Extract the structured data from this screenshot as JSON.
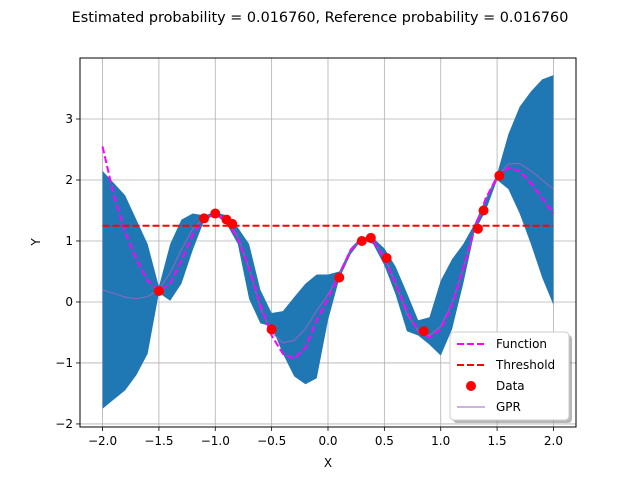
{
  "chart_data": {
    "type": "line",
    "title": "Estimated probability = 0.016760, Reference probability =  0.016760",
    "xlabel": "X",
    "ylabel": "Y",
    "xlim": [
      -2.2,
      2.2
    ],
    "ylim": [
      -2.05,
      4.0
    ],
    "xticks": [
      -2.0,
      -1.5,
      -1.0,
      -0.5,
      0.0,
      0.5,
      1.0,
      1.5,
      2.0
    ],
    "xtick_labels": [
      "−2.0",
      "−1.5",
      "−1.0",
      "−0.5",
      "0.0",
      "0.5",
      "1.0",
      "1.5",
      "2.0"
    ],
    "yticks": [
      -2,
      -1,
      0,
      1,
      2,
      3
    ],
    "ytick_labels": [
      "−2",
      "−1",
      "0",
      "1",
      "2",
      "3"
    ],
    "grid": true,
    "legend_position": "bottom-right",
    "colors": {
      "function": "#ff00ff",
      "threshold": "#ff0000",
      "data": "#ff0000",
      "gpr": "#9467bd",
      "band": "#1f77b4"
    },
    "function": {
      "name": "Function",
      "x": [
        -2.0,
        -1.9,
        -1.8,
        -1.7,
        -1.6,
        -1.5,
        -1.4,
        -1.3,
        -1.2,
        -1.1,
        -1.0,
        -0.9,
        -0.8,
        -0.7,
        -0.6,
        -0.5,
        -0.4,
        -0.3,
        -0.2,
        -0.1,
        0.0,
        0.1,
        0.2,
        0.3,
        0.4,
        0.5,
        0.6,
        0.7,
        0.8,
        0.9,
        1.0,
        1.1,
        1.2,
        1.3,
        1.4,
        1.5,
        1.6,
        1.7,
        1.8,
        1.9,
        2.0
      ],
      "y": [
        2.55,
        1.75,
        1.15,
        0.7,
        0.35,
        0.18,
        0.3,
        0.68,
        1.1,
        1.37,
        1.45,
        1.33,
        1.05,
        0.55,
        -0.05,
        -0.55,
        -0.85,
        -0.93,
        -0.75,
        -0.3,
        0.05,
        0.45,
        0.85,
        1.05,
        1.0,
        0.72,
        0.3,
        -0.15,
        -0.48,
        -0.58,
        -0.45,
        -0.05,
        0.55,
        1.2,
        1.7,
        2.05,
        2.2,
        2.15,
        1.95,
        1.7,
        1.45
      ]
    },
    "threshold": {
      "name": "Threshold",
      "y": 1.25
    },
    "data_points": {
      "name": "Data",
      "x": [
        -1.5,
        -1.1,
        -1.0,
        -0.9,
        -0.85,
        -0.5,
        0.1,
        0.3,
        0.38,
        0.52,
        0.85,
        1.33,
        1.38,
        1.52
      ],
      "y": [
        0.18,
        1.37,
        1.45,
        1.35,
        1.28,
        -0.45,
        0.4,
        1.0,
        1.05,
        0.72,
        -0.48,
        1.2,
        1.5,
        2.07
      ]
    },
    "gpr": {
      "name": "GPR",
      "x": [
        -2.0,
        -1.9,
        -1.8,
        -1.7,
        -1.6,
        -1.5,
        -1.4,
        -1.3,
        -1.2,
        -1.1,
        -1.0,
        -0.9,
        -0.8,
        -0.7,
        -0.6,
        -0.5,
        -0.4,
        -0.3,
        -0.2,
        -0.1,
        0.0,
        0.1,
        0.2,
        0.3,
        0.4,
        0.5,
        0.6,
        0.7,
        0.8,
        0.9,
        1.0,
        1.1,
        1.2,
        1.3,
        1.4,
        1.5,
        1.6,
        1.7,
        1.8,
        1.9,
        2.0
      ],
      "y": [
        0.2,
        0.14,
        0.08,
        0.05,
        0.09,
        0.2,
        0.48,
        0.86,
        1.2,
        1.38,
        1.45,
        1.35,
        1.08,
        0.55,
        -0.1,
        -0.5,
        -0.67,
        -0.63,
        -0.44,
        -0.14,
        0.12,
        0.45,
        0.83,
        1.04,
        1.0,
        0.75,
        0.3,
        -0.2,
        -0.48,
        -0.55,
        -0.4,
        -0.02,
        0.55,
        1.18,
        1.68,
        2.06,
        2.26,
        2.27,
        2.15,
        2.0,
        1.85
      ]
    },
    "band": {
      "lower": [
        -1.75,
        -1.6,
        -1.45,
        -1.2,
        -0.85,
        0.15,
        0.02,
        0.3,
        0.85,
        1.33,
        1.43,
        1.28,
        0.95,
        0.05,
        -0.35,
        -0.4,
        -0.85,
        -1.22,
        -1.35,
        -1.25,
        -0.3,
        0.38,
        0.78,
        1.02,
        0.95,
        0.6,
        0.12,
        -0.48,
        -0.55,
        -0.7,
        -0.88,
        -0.45,
        0.3,
        1.15,
        1.5,
        2.0,
        1.85,
        1.45,
        0.95,
        0.4,
        -0.05
      ],
      "upper": [
        2.15,
        1.95,
        1.75,
        1.35,
        0.95,
        0.25,
        0.95,
        1.35,
        1.45,
        1.42,
        1.47,
        1.42,
        1.22,
        0.95,
        0.2,
        -0.18,
        -0.15,
        0.08,
        0.3,
        0.45,
        0.45,
        0.5,
        0.88,
        1.07,
        1.05,
        0.88,
        0.58,
        0.15,
        -0.3,
        -0.25,
        0.35,
        0.7,
        0.95,
        1.28,
        1.7,
        2.1,
        2.75,
        3.2,
        3.45,
        3.65,
        3.72
      ]
    }
  }
}
